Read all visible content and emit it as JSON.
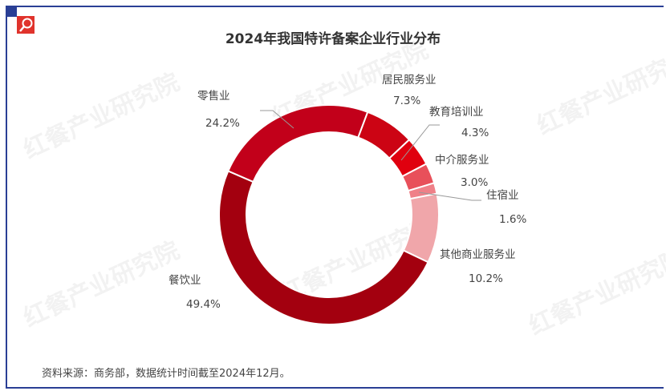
{
  "watermark": "红餐产业研究院",
  "chart_data": {
    "type": "pie",
    "donut": true,
    "title": "2024年我国特许备案企业行业分布",
    "categories": [
      "居民服务业",
      "教育培训业",
      "中介服务业",
      "住宿业",
      "其他商业服务业",
      "餐饮业",
      "零售业"
    ],
    "values": [
      7.3,
      4.3,
      3.0,
      1.6,
      10.2,
      49.4,
      24.2
    ],
    "labels": [
      "7.3%",
      "4.3%",
      "3.0%",
      "1.6%",
      "10.2%",
      "49.4%",
      "24.2%"
    ],
    "colors": [
      "#cc0414",
      "#e0000f",
      "#e8505a",
      "#ef8088",
      "#f0a6aa",
      "#a3000f",
      "#c2001a"
    ],
    "legend": "none"
  },
  "source": "资料来源：商务部，数据统计时间截至2024年12月。"
}
